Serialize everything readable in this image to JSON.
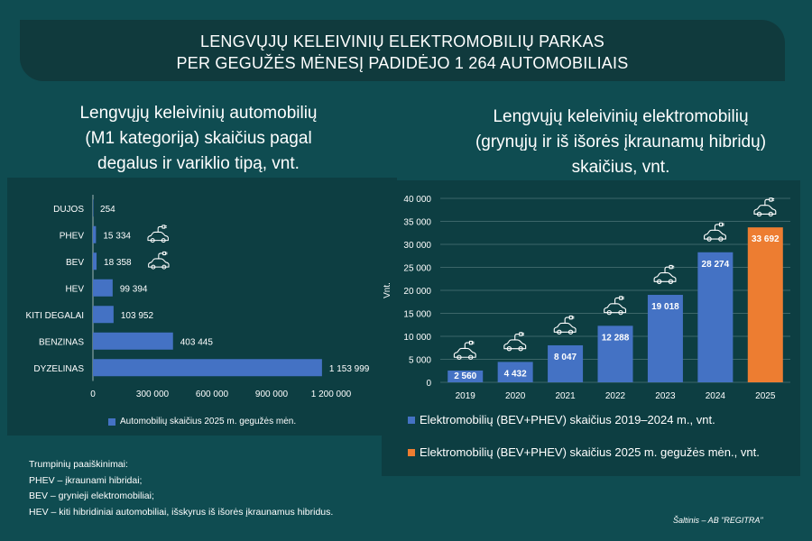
{
  "banner": {
    "line1": "LENGVŲJŲ KELEIVINIŲ ELEKTROMOBILIŲ PARKAS",
    "line2": "PER GEGUŽĖS MĖNESĮ PADIDĖJO 1 264 AUTOMOBILIAIS"
  },
  "left_title": {
    "line1": "Lengvųjų keleivinių automobilių",
    "line2": "(M1 kategorija) skaičius pagal",
    "line3": "degalus ir variklio tipą, vnt."
  },
  "right_title": {
    "line1": "Lengvųjų keleivinių elektromobilių",
    "line2": "(grynųjų ir iš išorės įkraunamų hibridų)",
    "line3": "skaičius, vnt."
  },
  "icons": {
    "ev_car": "electric-car-icon"
  },
  "colors": {
    "bar_blue": "#4472c4",
    "bar_orange": "#ed7d31",
    "background": "#0f4c51",
    "panel": "#0d3e42"
  },
  "chart_data": [
    {
      "type": "bar",
      "orientation": "horizontal",
      "categories": [
        "DUJOS",
        "PHEV",
        "BEV",
        "HEV",
        "KITI DEGALAI",
        "BENZINAS",
        "DYZELINAS"
      ],
      "value_labels": [
        "254",
        "15 334",
        "18 358",
        "99 394",
        "103 952",
        "403 445",
        "1 153 999"
      ],
      "series": [
        {
          "name": "Automobilių skaičius 2025 m. gegužės mėn.",
          "values": [
            254,
            15334,
            18358,
            99394,
            103952,
            403445,
            1153999
          ]
        }
      ],
      "xlim": [
        0,
        1200000
      ],
      "xticks": [
        0,
        300000,
        600000,
        900000,
        1200000
      ],
      "xtick_labels": [
        "0",
        "300 000",
        "600 000",
        "900 000",
        "1 200 000"
      ],
      "ev_icon_categories": [
        "PHEV",
        "BEV"
      ],
      "legend": "bottom",
      "grid": false
    },
    {
      "type": "bar",
      "categories": [
        "2019",
        "2020",
        "2021",
        "2022",
        "2023",
        "2024",
        "2025"
      ],
      "values": [
        2560,
        4432,
        8047,
        12288,
        19018,
        28274,
        33692
      ],
      "value_labels": [
        "2 560",
        "4 432",
        "8 047",
        "12 288",
        "19 018",
        "28 274",
        "33 692"
      ],
      "series": [
        {
          "name": "Elektromobilių (BEV+PHEV) skaičius 2019–2024 m., vnt.",
          "categories": [
            "2019",
            "2020",
            "2021",
            "2022",
            "2023",
            "2024"
          ],
          "color": "#4472c4"
        },
        {
          "name": "Elektromobilių (BEV+PHEV) skaičius 2025 m. gegužės mėn., vnt.",
          "categories": [
            "2025"
          ],
          "color": "#ed7d31"
        }
      ],
      "ylabel": "Vnt.",
      "ylim": [
        0,
        40000
      ],
      "yticks": [
        0,
        5000,
        10000,
        15000,
        20000,
        25000,
        30000,
        35000,
        40000
      ],
      "ytick_labels": [
        "0",
        "5 000",
        "10 000",
        "15 000",
        "20 000",
        "25 000",
        "30 000",
        "35 000",
        "40 000"
      ],
      "grid": true,
      "legend": "bottom"
    }
  ],
  "notes": {
    "heading": "Trumpinių paaiškinimai:",
    "lines": [
      "PHEV – įkraunami hibridai;",
      "BEV – grynieji elektromobiliai;",
      "HEV – kiti hibridiniai automobiliai, išskyrus iš išorės įkraunamus hibridus."
    ]
  },
  "source": "Šaltinis – AB \"REGITRA\""
}
